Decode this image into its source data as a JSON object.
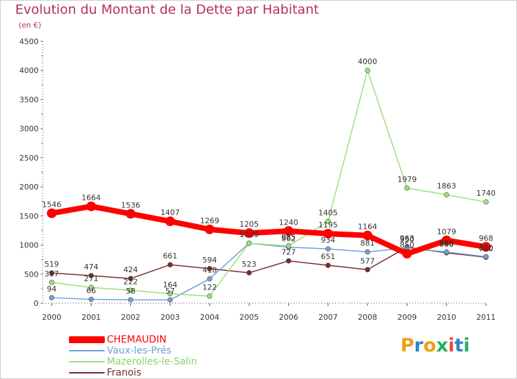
{
  "chart_data": {
    "type": "line",
    "title": "Evolution du Montant de la Dette par Habitant",
    "subtitle": "(en €)",
    "x": [
      "2000",
      "2001",
      "2002",
      "2003",
      "2004",
      "2005",
      "2006",
      "2007",
      "2008",
      "2009",
      "2010",
      "2011"
    ],
    "ylim": [
      0,
      4500
    ],
    "yticks": [
      "0",
      "500",
      "1000",
      "1500",
      "2000",
      "2500",
      "3000",
      "3500",
      "4000",
      "4500"
    ],
    "grid": false,
    "legend_position": "bottom-left",
    "series": [
      {
        "name": "CHEMAUDIN",
        "color": "#ff0000",
        "values": [
          1546,
          1664,
          1536,
          1407,
          1269,
          1205,
          1240,
          1195,
          1164,
          850,
          1079,
          968
        ],
        "labels": [
          "1546",
          "1664",
          "1536",
          "1407",
          "1269",
          "1205",
          "1240",
          "1195",
          "1164",
          "850",
          "1079",
          "968"
        ]
      },
      {
        "name": "Vaux-les-Prés",
        "color": "#6fa0d8",
        "values": [
          94,
          66,
          58,
          57,
          418,
          1029,
          962,
          934,
          881,
          950,
          880,
          800
        ],
        "labels": [
          "94",
          "66",
          "58",
          "57",
          "418",
          "1029",
          "962",
          "934",
          "881",
          "950",
          "880",
          "800"
        ]
      },
      {
        "name": "Mazerolles-le-Salin",
        "color": "#99e07a",
        "values": [
          357,
          271,
          222,
          164,
          122,
          1029,
          985,
          1405,
          4000,
          1979,
          1863,
          1740
        ],
        "labels": [
          "357",
          "271",
          "222",
          "164",
          "122",
          "1029",
          "985",
          "1405",
          "4000",
          "1979",
          "1863",
          "1740"
        ]
      },
      {
        "name": "Franois",
        "color": "#7a2a2a",
        "values": [
          519,
          474,
          424,
          661,
          594,
          523,
          727,
          651,
          577,
          963,
          866,
          790
        ],
        "labels": [
          "519",
          "474",
          "424",
          "661",
          "594",
          "523",
          "727",
          "651",
          "577",
          "963",
          "866",
          "790"
        ]
      }
    ]
  },
  "logo": {
    "letters": [
      "P",
      "r",
      "o",
      "x",
      "i",
      "t",
      "i"
    ],
    "colors": [
      "#f39c12",
      "#2e86c1",
      "#f39c12",
      "#27ae60",
      "#e74c3c",
      "#2e86c1",
      "#27ae60"
    ]
  }
}
